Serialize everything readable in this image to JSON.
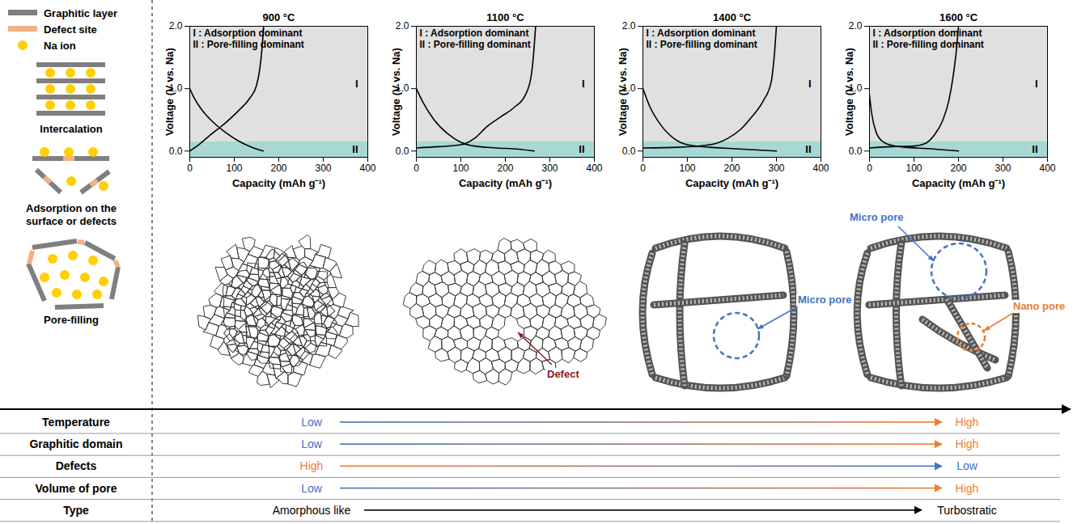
{
  "legend_items": [
    {
      "label": "Graphitic layer",
      "color": "#7f7f7f",
      "marker": "bar"
    },
    {
      "label": "Defect site",
      "color": "#f4b183",
      "marker": "bar"
    },
    {
      "label": "Na ion",
      "color": "#ffd000",
      "marker": "circle"
    }
  ],
  "mechanisms": [
    "Intercalation",
    "Adsorption on the surface or defects",
    "Pore-filling"
  ],
  "chart_data": [
    {
      "type": "line",
      "title": "900 °C",
      "annotations": [
        "I : Adsorption dominant",
        "II : Pore-filling dominant"
      ],
      "regions": [
        {
          "label": "I",
          "from": 0.15,
          "to": 2,
          "color": "#e0e0e0"
        },
        {
          "label": "II",
          "from": -0.1,
          "to": 0.15,
          "color": "#a8d8d6"
        }
      ],
      "xlabel": "Capacity (mAh g⁻¹)",
      "ylabel": "Voltage (V vs. Na)",
      "xlim": [
        0,
        400
      ],
      "xticks": [
        0,
        100,
        200,
        300,
        400
      ],
      "ylim": [
        -0.1,
        2
      ],
      "yticks": [
        0,
        1,
        2
      ],
      "series": [
        {
          "color": "#000000",
          "x": [
            0,
            10,
            25,
            50,
            80,
            110,
            140,
            165
          ],
          "values": [
            1.0,
            0.85,
            0.68,
            0.48,
            0.3,
            0.16,
            0.06,
            0.0
          ]
        },
        {
          "color": "#000000",
          "x": [
            0,
            20,
            50,
            80,
            110,
            135,
            150,
            158,
            163,
            166
          ],
          "values": [
            0.0,
            0.1,
            0.28,
            0.45,
            0.65,
            0.85,
            1.05,
            1.35,
            1.7,
            2.0
          ]
        }
      ]
    },
    {
      "type": "line",
      "title": "1100 °C",
      "annotations": [
        "I : Adsorption dominant",
        "II : Pore-filling dominant"
      ],
      "regions": [
        {
          "label": "I",
          "from": 0.15,
          "to": 2,
          "color": "#e0e0e0"
        },
        {
          "label": "II",
          "from": -0.1,
          "to": 0.15,
          "color": "#a8d8d6"
        }
      ],
      "xlabel": "Capacity (mAh g⁻¹)",
      "ylabel": "Voltage (V vs. Na)",
      "xlim": [
        0,
        400
      ],
      "xticks": [
        0,
        100,
        200,
        300,
        400
      ],
      "ylim": [
        -0.1,
        2
      ],
      "yticks": [
        0,
        1,
        2
      ],
      "series": [
        {
          "color": "#000000",
          "x": [
            0,
            15,
            40,
            70,
            100,
            130,
            180,
            230,
            265
          ],
          "values": [
            1.0,
            0.78,
            0.5,
            0.28,
            0.14,
            0.08,
            0.05,
            0.03,
            0.0
          ]
        },
        {
          "color": "#000000",
          "x": [
            0,
            50,
            100,
            130,
            160,
            190,
            220,
            245,
            258,
            264,
            268
          ],
          "values": [
            0.05,
            0.07,
            0.1,
            0.2,
            0.4,
            0.55,
            0.7,
            0.9,
            1.2,
            1.6,
            2.0
          ]
        }
      ]
    },
    {
      "type": "line",
      "title": "1400 °C",
      "annotations": [
        "I : Adsorption dominant",
        "II : Pore-filling dominant"
      ],
      "regions": [
        {
          "label": "I",
          "from": 0.15,
          "to": 2,
          "color": "#e0e0e0"
        },
        {
          "label": "II",
          "from": -0.1,
          "to": 0.15,
          "color": "#a8d8d6"
        }
      ],
      "xlabel": "Capacity (mAh g⁻¹)",
      "ylabel": "Voltage (V vs. Na)",
      "xlim": [
        0,
        400
      ],
      "xticks": [
        0,
        100,
        200,
        300,
        400
      ],
      "ylim": [
        -0.1,
        2
      ],
      "yticks": [
        0,
        1,
        2
      ],
      "series": [
        {
          "color": "#000000",
          "x": [
            0,
            15,
            40,
            70,
            100,
            150,
            200,
            250,
            300
          ],
          "values": [
            1.0,
            0.72,
            0.42,
            0.2,
            0.1,
            0.06,
            0.04,
            0.02,
            0.0
          ]
        },
        {
          "color": "#000000",
          "x": [
            0,
            80,
            150,
            190,
            220,
            245,
            270,
            288,
            296,
            300
          ],
          "values": [
            0.05,
            0.06,
            0.1,
            0.2,
            0.35,
            0.55,
            0.8,
            1.1,
            1.6,
            2.0
          ]
        }
      ]
    },
    {
      "type": "line",
      "title": "1600 °C",
      "annotations": [
        "I : Adsorption dominant",
        "II : Pore-filling dominant"
      ],
      "regions": [
        {
          "label": "I",
          "from": 0.15,
          "to": 2,
          "color": "#e0e0e0"
        },
        {
          "label": "II",
          "from": -0.1,
          "to": 0.15,
          "color": "#a8d8d6"
        }
      ],
      "xlabel": "Capacity (mAh g⁻¹)",
      "ylabel": "Voltage (V vs. Na)",
      "xlim": [
        0,
        400
      ],
      "xticks": [
        0,
        100,
        200,
        300,
        400
      ],
      "ylim": [
        -0.1,
        2
      ],
      "yticks": [
        0,
        1,
        2
      ],
      "series": [
        {
          "color": "#000000",
          "x": [
            0,
            5,
            15,
            30,
            50,
            80,
            130,
            200
          ],
          "values": [
            0.9,
            0.6,
            0.3,
            0.15,
            0.09,
            0.06,
            0.04,
            0.0
          ]
        },
        {
          "color": "#000000",
          "x": [
            0,
            50,
            100,
            125,
            145,
            165,
            178,
            188,
            195,
            200
          ],
          "values": [
            0.05,
            0.07,
            0.08,
            0.12,
            0.25,
            0.5,
            0.8,
            1.2,
            1.6,
            2.0
          ]
        }
      ]
    }
  ],
  "structures": [
    {
      "annotations": []
    },
    {
      "annotations": [
        {
          "label": "Defect",
          "color": "#8b1a1a"
        }
      ]
    },
    {
      "annotations": [
        {
          "label": "Micro pore",
          "color": "#4472c4"
        }
      ]
    },
    {
      "annotations": [
        {
          "label": "Micro pore",
          "color": "#4472c4"
        },
        {
          "label": "Nano pore",
          "color": "#ed7d31"
        }
      ]
    }
  ],
  "table": {
    "rows": [
      {
        "label": "Temperature",
        "start": "Low",
        "end": "High",
        "start_color": "#4472c4",
        "end_color": "#ed7d31"
      },
      {
        "label": "Graphitic domain",
        "start": "Low",
        "end": "High",
        "start_color": "#4472c4",
        "end_color": "#ed7d31"
      },
      {
        "label": "Defects",
        "start": "High",
        "end": "Low",
        "start_color": "#ed7d31",
        "end_color": "#4472c4"
      },
      {
        "label": "Volume of pore",
        "start": "Low",
        "end": "High",
        "start_color": "#4472c4",
        "end_color": "#ed7d31"
      },
      {
        "label": "Type",
        "start": "Amorphous like",
        "end": "Turbostratic",
        "start_color": "#000000",
        "end_color": "#000000"
      }
    ]
  }
}
